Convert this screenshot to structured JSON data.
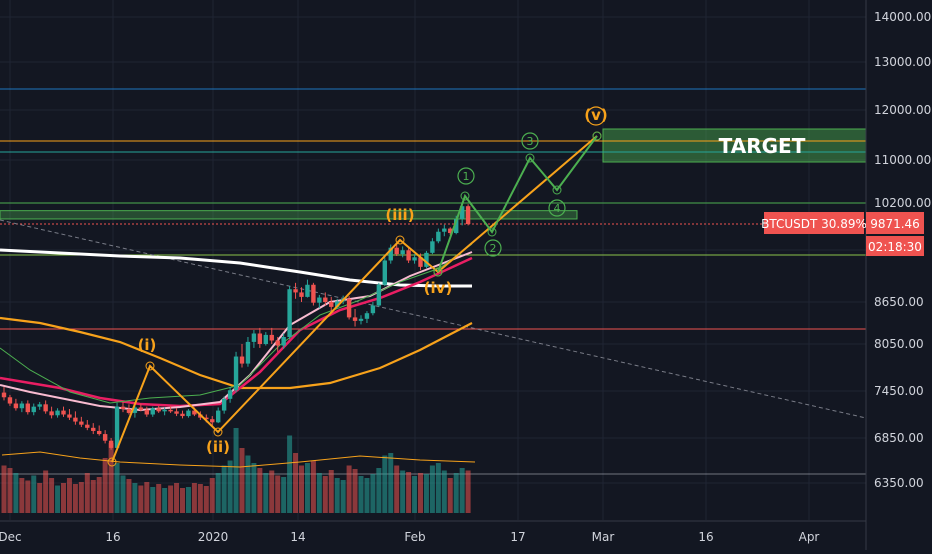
{
  "chart_data": {
    "type": "candlestick",
    "symbol": "BTCUSDT",
    "price_axis": {
      "ticks": [
        "14000.00",
        "13000.00",
        "12000.00",
        "11000.00",
        "10200.00",
        "8650.00",
        "8050.00",
        "7450.00",
        "6850.00",
        "6350.00"
      ]
    },
    "time_axis": {
      "ticks": [
        "Dec",
        "16",
        "2020",
        "14",
        "Feb",
        "17",
        "Mar",
        "16",
        "Apr"
      ]
    },
    "last_price": {
      "symbol_label": "BTCUSDT 30.89%",
      "value": "9871.46",
      "countdown": "02:18:30",
      "color": "#ef5350"
    },
    "target_label": "TARGET",
    "wave_labels": {
      "minor": [
        "(i)",
        "(ii)",
        "(iii)",
        "(iv)",
        "(v)"
      ],
      "minute": [
        "1",
        "2",
        "3",
        "4"
      ]
    },
    "series": [
      {
        "color": "#ffffff"
      },
      {
        "color": "#f7a21b"
      },
      {
        "color": "#e91e63"
      },
      {
        "color": "#f8bbd0"
      },
      {
        "color": "#4caf50"
      }
    ],
    "colors": {
      "up": "#26a69a",
      "down": "#ef5350",
      "background": "#131722",
      "target_zone": "#4caf50",
      "wave_minor": "#f7a21b",
      "wave_minute": "#4caf50"
    },
    "candles": [
      [
        7430,
        7500,
        7330,
        7370
      ],
      [
        7370,
        7400,
        7260,
        7290
      ],
      [
        7290,
        7350,
        7200,
        7230
      ],
      [
        7230,
        7320,
        7180,
        7290
      ],
      [
        7290,
        7330,
        7150,
        7180
      ],
      [
        7180,
        7290,
        7140,
        7250
      ],
      [
        7250,
        7310,
        7210,
        7280
      ],
      [
        7280,
        7330,
        7160,
        7190
      ],
      [
        7190,
        7250,
        7100,
        7140
      ],
      [
        7140,
        7230,
        7110,
        7200
      ],
      [
        7200,
        7250,
        7120,
        7150
      ],
      [
        7150,
        7220,
        7080,
        7110
      ],
      [
        7110,
        7190,
        7020,
        7060
      ],
      [
        7060,
        7120,
        6990,
        7020
      ],
      [
        7020,
        7080,
        6950,
        6980
      ],
      [
        6980,
        7040,
        6900,
        6940
      ],
      [
        6940,
        7010,
        6880,
        6900
      ],
      [
        6900,
        6950,
        6790,
        6820
      ],
      [
        6820,
        6850,
        6720,
        6740
      ],
      [
        6740,
        7300,
        6730,
        7250
      ],
      [
        7250,
        7310,
        7180,
        7220
      ],
      [
        7220,
        7280,
        7150,
        7170
      ],
      [
        7170,
        7260,
        7110,
        7240
      ],
      [
        7240,
        7290,
        7190,
        7210
      ],
      [
        7210,
        7250,
        7120,
        7150
      ],
      [
        7150,
        7250,
        7120,
        7230
      ],
      [
        7230,
        7260,
        7170,
        7190
      ],
      [
        7190,
        7240,
        7140,
        7210
      ],
      [
        7210,
        7260,
        7170,
        7190
      ],
      [
        7190,
        7230,
        7130,
        7160
      ],
      [
        7160,
        7200,
        7100,
        7130
      ],
      [
        7130,
        7220,
        7110,
        7200
      ],
      [
        7200,
        7240,
        7130,
        7150
      ],
      [
        7150,
        7190,
        7080,
        7110
      ],
      [
        7110,
        7150,
        7050,
        7090
      ],
      [
        7090,
        7130,
        7000,
        7050
      ],
      [
        7050,
        7240,
        7040,
        7200
      ],
      [
        7200,
        7380,
        7160,
        7350
      ],
      [
        7350,
        7500,
        7300,
        7460
      ],
      [
        7460,
        7950,
        7430,
        7890
      ],
      [
        7890,
        8050,
        7750,
        7800
      ],
      [
        7800,
        8150,
        7760,
        8080
      ],
      [
        8080,
        8250,
        8000,
        8200
      ],
      [
        8200,
        8280,
        8000,
        8050
      ],
      [
        8050,
        8220,
        8030,
        8180
      ],
      [
        8180,
        8280,
        8050,
        8100
      ],
      [
        8100,
        8150,
        7950,
        8030
      ],
      [
        8030,
        8200,
        7990,
        8150
      ],
      [
        8150,
        8900,
        8120,
        8850
      ],
      [
        8850,
        8950,
        8700,
        8800
      ],
      [
        8800,
        8880,
        8650,
        8730
      ],
      [
        8730,
        9000,
        8720,
        8920
      ],
      [
        8920,
        8950,
        8600,
        8640
      ],
      [
        8640,
        8760,
        8560,
        8720
      ],
      [
        8720,
        8800,
        8600,
        8650
      ],
      [
        8650,
        8730,
        8520,
        8580
      ],
      [
        8580,
        8700,
        8550,
        8660
      ],
      [
        8660,
        8750,
        8620,
        8700
      ],
      [
        8700,
        8740,
        8400,
        8430
      ],
      [
        8430,
        8550,
        8300,
        8380
      ],
      [
        8380,
        8460,
        8330,
        8410
      ],
      [
        8410,
        8520,
        8350,
        8490
      ],
      [
        8490,
        8650,
        8460,
        8600
      ],
      [
        8600,
        8950,
        8580,
        8920
      ],
      [
        8920,
        9350,
        8900,
        9300
      ],
      [
        9300,
        9550,
        9250,
        9500
      ],
      [
        9500,
        9560,
        9370,
        9400
      ],
      [
        9400,
        9520,
        9350,
        9460
      ],
      [
        9460,
        9500,
        9260,
        9300
      ],
      [
        9300,
        9400,
        9250,
        9350
      ],
      [
        9350,
        9410,
        9150,
        9200
      ],
      [
        9200,
        9450,
        9180,
        9420
      ],
      [
        9420,
        9650,
        9400,
        9600
      ],
      [
        9600,
        9800,
        9570,
        9750
      ],
      [
        9750,
        9860,
        9680,
        9800
      ],
      [
        9800,
        9820,
        9700,
        9730
      ],
      [
        9730,
        10000,
        9710,
        9950
      ],
      [
        9950,
        10200,
        9850,
        10150
      ],
      [
        10150,
        10180,
        9850,
        9871
      ]
    ],
    "volume": [
      [
        95,
        "r"
      ],
      [
        90,
        "r"
      ],
      [
        80,
        "g"
      ],
      [
        70,
        "r"
      ],
      [
        65,
        "r"
      ],
      [
        75,
        "g"
      ],
      [
        60,
        "r"
      ],
      [
        85,
        "r"
      ],
      [
        70,
        "r"
      ],
      [
        55,
        "g"
      ],
      [
        60,
        "r"
      ],
      [
        70,
        "r"
      ],
      [
        58,
        "r"
      ],
      [
        62,
        "r"
      ],
      [
        80,
        "r"
      ],
      [
        66,
        "r"
      ],
      [
        72,
        "r"
      ],
      [
        110,
        "r"
      ],
      [
        140,
        "r"
      ],
      [
        100,
        "g"
      ],
      [
        75,
        "g"
      ],
      [
        68,
        "r"
      ],
      [
        60,
        "g"
      ],
      [
        55,
        "r"
      ],
      [
        62,
        "r"
      ],
      [
        52,
        "g"
      ],
      [
        58,
        "r"
      ],
      [
        50,
        "g"
      ],
      [
        55,
        "r"
      ],
      [
        60,
        "r"
      ],
      [
        50,
        "r"
      ],
      [
        52,
        "g"
      ],
      [
        60,
        "r"
      ],
      [
        58,
        "r"
      ],
      [
        54,
        "r"
      ],
      [
        70,
        "r"
      ],
      [
        80,
        "g"
      ],
      [
        95,
        "g"
      ],
      [
        105,
        "g"
      ],
      [
        170,
        "g"
      ],
      [
        130,
        "r"
      ],
      [
        115,
        "g"
      ],
      [
        100,
        "g"
      ],
      [
        90,
        "r"
      ],
      [
        80,
        "g"
      ],
      [
        85,
        "r"
      ],
      [
        75,
        "r"
      ],
      [
        72,
        "g"
      ],
      [
        155,
        "g"
      ],
      [
        120,
        "r"
      ],
      [
        95,
        "r"
      ],
      [
        100,
        "g"
      ],
      [
        105,
        "r"
      ],
      [
        80,
        "g"
      ],
      [
        74,
        "r"
      ],
      [
        86,
        "r"
      ],
      [
        70,
        "g"
      ],
      [
        66,
        "g"
      ],
      [
        95,
        "r"
      ],
      [
        88,
        "r"
      ],
      [
        74,
        "g"
      ],
      [
        70,
        "g"
      ],
      [
        78,
        "g"
      ],
      [
        90,
        "g"
      ],
      [
        115,
        "g"
      ],
      [
        120,
        "g"
      ],
      [
        95,
        "r"
      ],
      [
        85,
        "g"
      ],
      [
        82,
        "r"
      ],
      [
        74,
        "g"
      ],
      [
        80,
        "r"
      ],
      [
        78,
        "g"
      ],
      [
        95,
        "g"
      ],
      [
        100,
        "g"
      ],
      [
        85,
        "g"
      ],
      [
        70,
        "r"
      ],
      [
        80,
        "g"
      ],
      [
        90,
        "g"
      ],
      [
        85,
        "r"
      ]
    ]
  }
}
